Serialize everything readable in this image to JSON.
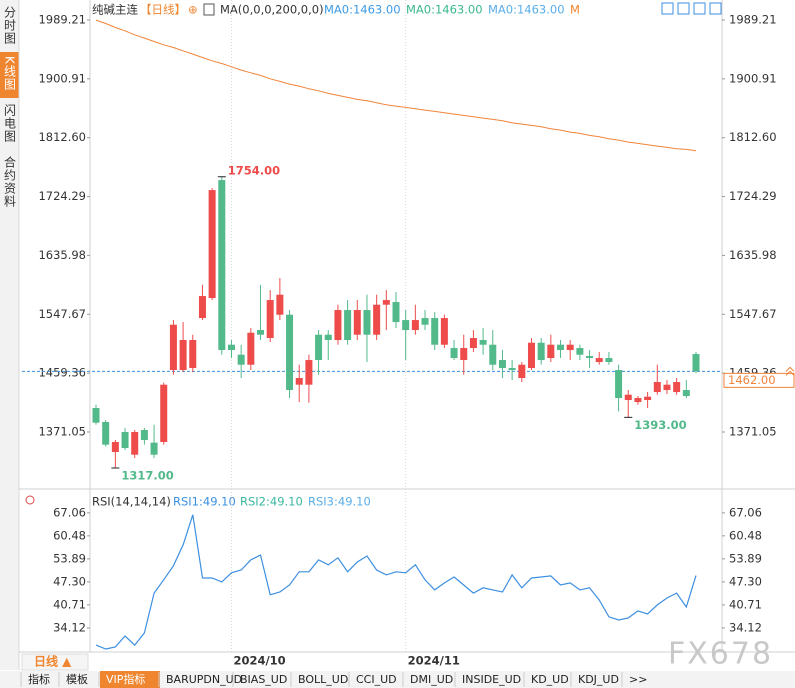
{
  "sidebar": [
    "分时图",
    "K线图",
    "闪电图",
    "合约资料"
  ],
  "chart_data": [
    {
      "type": "candlestick",
      "header": {
        "symbol": "纯碱主连",
        "period": "【日线】",
        "ma_params": "MA(0,0,0,200,0,0)",
        "ma_values": [
          "MA0:1463.00",
          "MA0:1463.00",
          "MA0:1463.00"
        ],
        "more": "M"
      },
      "categories": [
        null,
        null,
        null,
        null,
        null,
        null,
        null,
        null,
        null,
        null,
        null,
        null,
        null,
        null,
        "2024/10",
        null,
        null,
        null,
        null,
        null,
        null,
        null,
        null,
        null,
        null,
        null,
        null,
        null,
        null,
        null,
        null,
        null,
        "2024/11",
        null,
        null,
        null,
        null,
        null,
        null,
        null,
        null,
        null,
        null,
        null,
        null,
        null,
        null,
        null,
        null,
        null,
        null,
        null,
        null,
        null,
        null,
        null,
        null,
        null,
        null,
        null,
        null,
        null,
        null
      ],
      "open": [
        1407,
        1386,
        1341,
        1371,
        1337,
        1374,
        1355,
        1356,
        1464,
        1464,
        1467,
        1542,
        1572,
        1749,
        1502,
        1487,
        1472,
        1524,
        1512,
        1547,
        1547,
        1442,
        1442,
        1517,
        1517,
        1509,
        1554,
        1517,
        1554,
        1517,
        1562,
        1566,
        1539,
        1524,
        1542,
        1542,
        1502,
        1497,
        1479,
        1497,
        1509,
        1502,
        1479,
        1467,
        1452,
        1467,
        1505,
        1482,
        1502,
        1494,
        1497,
        1485,
        1476,
        1482,
        1464,
        1419,
        1416,
        1419,
        1431,
        1434,
        1431,
        1434,
        1488
      ],
      "high": [
        1412,
        1389,
        1359,
        1377,
        1374,
        1377,
        1382,
        1445,
        1539,
        1536,
        1517,
        1592,
        1737,
        1754,
        1509,
        1502,
        1527,
        1592,
        1584,
        1602,
        1554,
        1472,
        1487,
        1524,
        1524,
        1562,
        1569,
        1569,
        1577,
        1577,
        1584,
        1581,
        1554,
        1562,
        1554,
        1551,
        1547,
        1509,
        1517,
        1524,
        1527,
        1524,
        1494,
        1479,
        1476,
        1512,
        1512,
        1517,
        1509,
        1509,
        1502,
        1494,
        1491,
        1491,
        1472,
        1434,
        1425,
        1431,
        1472,
        1449,
        1452,
        1449,
        1491
      ],
      "low": [
        1382,
        1349,
        1317,
        1344,
        1332,
        1352,
        1332,
        1352,
        1457,
        1461,
        1461,
        1539,
        1569,
        1487,
        1482,
        1452,
        1464,
        1509,
        1506,
        1539,
        1422,
        1416,
        1415,
        1457,
        1479,
        1502,
        1502,
        1509,
        1476,
        1509,
        1524,
        1527,
        1479,
        1517,
        1524,
        1494,
        1497,
        1479,
        1457,
        1491,
        1487,
        1464,
        1452,
        1449,
        1446,
        1464,
        1472,
        1476,
        1482,
        1479,
        1479,
        1467,
        1472,
        1472,
        1402,
        1393,
        1412,
        1407,
        1427,
        1428,
        1427,
        1422,
        1459
      ],
      "close": [
        1385,
        1352,
        1356,
        1347,
        1371,
        1359,
        1337,
        1442,
        1532,
        1509,
        1509,
        1575,
        1734,
        1494,
        1494,
        1472,
        1520,
        1517,
        1569,
        1577,
        1434,
        1452,
        1479,
        1479,
        1509,
        1554,
        1509,
        1554,
        1517,
        1562,
        1569,
        1536,
        1524,
        1539,
        1532,
        1502,
        1542,
        1482,
        1497,
        1512,
        1502,
        1472,
        1467,
        1464,
        1472,
        1505,
        1479,
        1502,
        1494,
        1502,
        1487,
        1482,
        1482,
        1476,
        1422,
        1427,
        1422,
        1424,
        1446,
        1442,
        1446,
        1425,
        1462
      ],
      "up_color": "#ee4b4b",
      "down_color": "#52b98a",
      "ma": {
        "color": "#f0853a",
        "values": [
          1989,
          1984,
          1978,
          1973,
          1967,
          1962,
          1957,
          1952,
          1948,
          1943,
          1938,
          1933,
          1928,
          1924,
          1919,
          1914,
          1910,
          1906,
          1901,
          1897,
          1893,
          1890,
          1886,
          1883,
          1879,
          1876,
          1873,
          1870,
          1868,
          1865,
          1862,
          1860,
          1858,
          1856,
          1854,
          1852,
          1850,
          1848,
          1846,
          1844,
          1842,
          1840,
          1838,
          1835,
          1833,
          1831,
          1829,
          1826,
          1824,
          1821,
          1819,
          1816,
          1814,
          1811,
          1809,
          1806,
          1804,
          1802,
          1800,
          1798,
          1796,
          1795,
          1793
        ]
      },
      "ylim": [
        1291.5,
        2004.2
      ],
      "yticks": [
        1989.21,
        1900.91,
        {
          "value": 1812.6,
          "label": "1812.60"
        },
        1724.29,
        1635.98,
        1547.67,
        1459.36,
        1371.05
      ],
      "annotations": [
        {
          "label": "1754.00",
          "value": 1754
        },
        {
          "label": "1317.00",
          "value": 1317
        },
        {
          "label": "1393.00",
          "value": 1393
        }
      ],
      "last_price": {
        "value": 1462,
        "label": "1462.00",
        "color": "#f0853a"
      }
    },
    {
      "type": "line",
      "title": "RSI(14,14,14)",
      "series": [
        {
          "name": "RSI1:49.10",
          "color": "#3d8fe0",
          "values": [
            29.2,
            28.1,
            28.7,
            31.8,
            29.2,
            32.7,
            44.1,
            47.9,
            51.9,
            57.9,
            66.5,
            48.4,
            48.4,
            47.3,
            49.9,
            50.7,
            53.6,
            55.0,
            43.6,
            44.4,
            46.4,
            50.2,
            50.2,
            53.6,
            52.2,
            54.2,
            50.2,
            53.0,
            54.7,
            50.7,
            49.3,
            50.2,
            49.9,
            52.2,
            47.9,
            45.0,
            47.0,
            48.7,
            46.4,
            44.1,
            45.6,
            45.0,
            44.4,
            49.3,
            45.6,
            48.4,
            48.7,
            49.0,
            46.4,
            47.0,
            45.0,
            45.6,
            42.1,
            37.3,
            36.4,
            37.0,
            39.0,
            38.1,
            40.7,
            42.7,
            44.1,
            40.1,
            49.1
          ]
        }
      ],
      "other_legend": [
        {
          "text": "RSI2:49.10",
          "color": "#3ab8a0"
        },
        {
          "text": "RSI3:49.10",
          "color": "#5aaee8"
        }
      ],
      "ylim": [
        27.8,
        71.6
      ],
      "yticks": [
        67.06,
        60.48,
        53.89,
        {
          "value": 47.3,
          "label": "47.30"
        },
        40.71,
        34.12
      ]
    }
  ],
  "period_button": "日线 ▲",
  "toolbar": [
    "指标",
    "模板",
    "VIP指标",
    "BARUPDN_UD",
    "BIAS_UD",
    "BOLL_UD",
    "CCI_UD",
    "DMI_UD",
    "INSIDE_UD",
    "KD_UD",
    "KDJ_UD",
    ">>"
  ],
  "watermark": "FX678"
}
